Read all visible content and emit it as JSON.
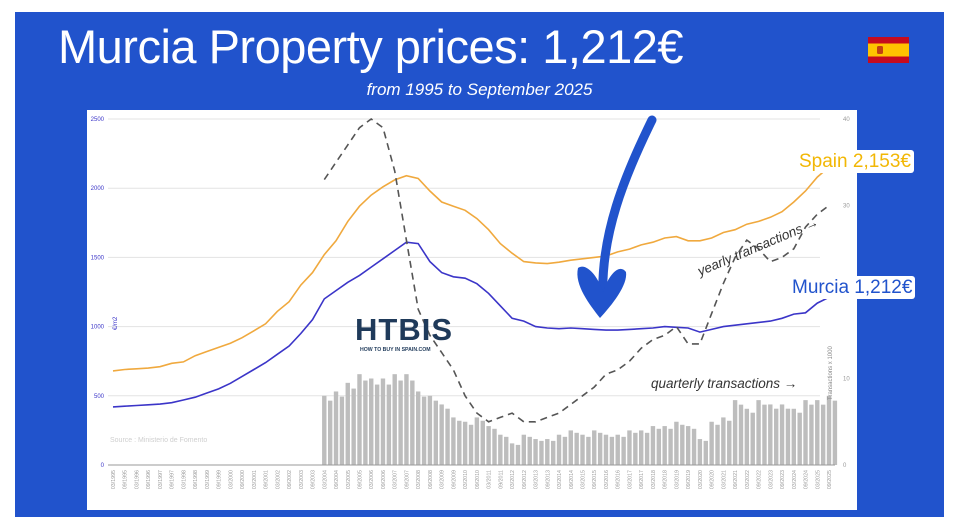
{
  "header": {
    "title": "Murcia Property prices: 1,212€",
    "subtitle": "from 1995 to September 2025",
    "flag_icon": "spain-flag-icon"
  },
  "colors": {
    "background_panel": "#2153cc",
    "spain_line": "#f0a93e",
    "murcia_line": "#3b35c8",
    "transactions_line": "#555555",
    "bars": "#bdbdbd",
    "spain_label": "#f2b705",
    "murcia_label": "#2153cc"
  },
  "labels": {
    "spain": "Spain 2,153€",
    "murcia": "Murcia 1,212€",
    "yearly_transactions": "yearly transactions →",
    "quarterly_transactions": "quarterly transactions →",
    "source": "Source : Ministerio de Fomento",
    "left_axis_title": "€/m2",
    "right_axis_title": "Transactions x 1000",
    "logo_main": "HTBIS",
    "logo_sub": "HOW TO BUY IN SPAIN.COM"
  },
  "chart_data": {
    "type": "line",
    "title": "Murcia Property prices: 1,212€",
    "subtitle": "from 1995 to September 2025",
    "xlabel": "",
    "ylabel": "€/m2",
    "ylabel_right": "Transactions x 1000",
    "ylim": [
      0,
      2500
    ],
    "ylim_right": [
      0,
      40
    ],
    "yticks": [
      0,
      500,
      1000,
      1500,
      2000,
      2500
    ],
    "yticks_right": [
      0,
      10,
      20,
      30,
      40
    ],
    "grid": true,
    "categories": [
      "03/1995",
      "09/1995",
      "03/1996",
      "09/1996",
      "03/1997",
      "09/1997",
      "03/1998",
      "09/1998",
      "03/1999",
      "09/1999",
      "03/2000",
      "09/2000",
      "03/2001",
      "09/2001",
      "03/2002",
      "09/2002",
      "03/2003",
      "09/2003",
      "03/2004",
      "09/2004",
      "03/2005",
      "09/2005",
      "03/2006",
      "09/2006",
      "03/2007",
      "09/2007",
      "03/2008",
      "09/2008",
      "03/2009",
      "09/2009",
      "03/2010",
      "09/2010",
      "03/2011",
      "09/2011",
      "03/2012",
      "09/2012",
      "03/2013",
      "09/2013",
      "03/2014",
      "09/2014",
      "03/2015",
      "09/2015",
      "03/2016",
      "09/2016",
      "03/2017",
      "09/2017",
      "03/2018",
      "09/2018",
      "03/2019",
      "09/2019",
      "03/2020",
      "09/2020",
      "03/2021",
      "09/2021",
      "03/2022",
      "09/2022",
      "03/2023",
      "09/2023",
      "03/2024",
      "09/2024",
      "03/2025",
      "09/2025"
    ],
    "series": [
      {
        "name": "Spain (€/m2)",
        "axis": "left",
        "style": "solid",
        "values": [
          680,
          690,
          695,
          700,
          710,
          735,
          745,
          790,
          820,
          850,
          880,
          920,
          970,
          1020,
          1110,
          1180,
          1300,
          1390,
          1520,
          1620,
          1760,
          1870,
          1950,
          2010,
          2060,
          2090,
          2070,
          1980,
          1900,
          1870,
          1840,
          1780,
          1700,
          1600,
          1530,
          1470,
          1460,
          1455,
          1465,
          1480,
          1490,
          1500,
          1510,
          1540,
          1560,
          1590,
          1610,
          1640,
          1650,
          1620,
          1620,
          1640,
          1680,
          1700,
          1740,
          1760,
          1790,
          1830,
          1900,
          1980,
          2080,
          2153
        ]
      },
      {
        "name": "Murcia (€/m2)",
        "axis": "left",
        "style": "solid",
        "values": [
          420,
          425,
          430,
          435,
          440,
          450,
          470,
          490,
          520,
          550,
          590,
          640,
          690,
          740,
          800,
          860,
          950,
          1050,
          1200,
          1260,
          1320,
          1370,
          1430,
          1490,
          1550,
          1610,
          1600,
          1470,
          1390,
          1360,
          1350,
          1310,
          1240,
          1150,
          1060,
          1040,
          1000,
          990,
          985,
          990,
          985,
          980,
          975,
          975,
          980,
          985,
          990,
          1000,
          995,
          990,
          960,
          980,
          1000,
          1010,
          1020,
          1030,
          1040,
          1060,
          1090,
          1100,
          1170,
          1212
        ]
      },
      {
        "name": "Yearly transactions (x1000)",
        "axis": "right",
        "style": "dashed",
        "values": [
          null,
          null,
          null,
          null,
          null,
          null,
          null,
          null,
          null,
          null,
          null,
          null,
          null,
          null,
          null,
          null,
          null,
          null,
          33,
          35,
          37,
          39,
          40,
          39,
          34,
          26,
          18,
          15,
          13,
          11,
          8,
          6,
          5,
          5.5,
          6,
          5,
          5,
          5.5,
          6,
          7,
          8,
          9,
          10.5,
          11,
          12,
          13.5,
          14.5,
          15,
          16,
          14,
          14,
          17.5,
          21,
          24,
          26,
          25,
          23.5,
          24,
          25,
          27.5,
          29,
          30
        ]
      },
      {
        "name": "Quarterly transactions (x1000)",
        "axis": "right",
        "style": "bar",
        "values": [
          null,
          null,
          null,
          null,
          null,
          null,
          null,
          null,
          null,
          null,
          null,
          null,
          null,
          null,
          null,
          null,
          null,
          null,
          8,
          8.5,
          9.5,
          10.5,
          10,
          10,
          10.5,
          10.5,
          8.5,
          8,
          7,
          5.5,
          5,
          5.5,
          4.5,
          3.5,
          2.5,
          3.5,
          3,
          3,
          3.5,
          4,
          3.5,
          4,
          3.5,
          3.5,
          4,
          4,
          4.5,
          4.5,
          5,
          4.5,
          3,
          5,
          5.5,
          7.5,
          6.5,
          7.5,
          7,
          7,
          6.5,
          7.5,
          7.5,
          8
        ]
      }
    ]
  }
}
